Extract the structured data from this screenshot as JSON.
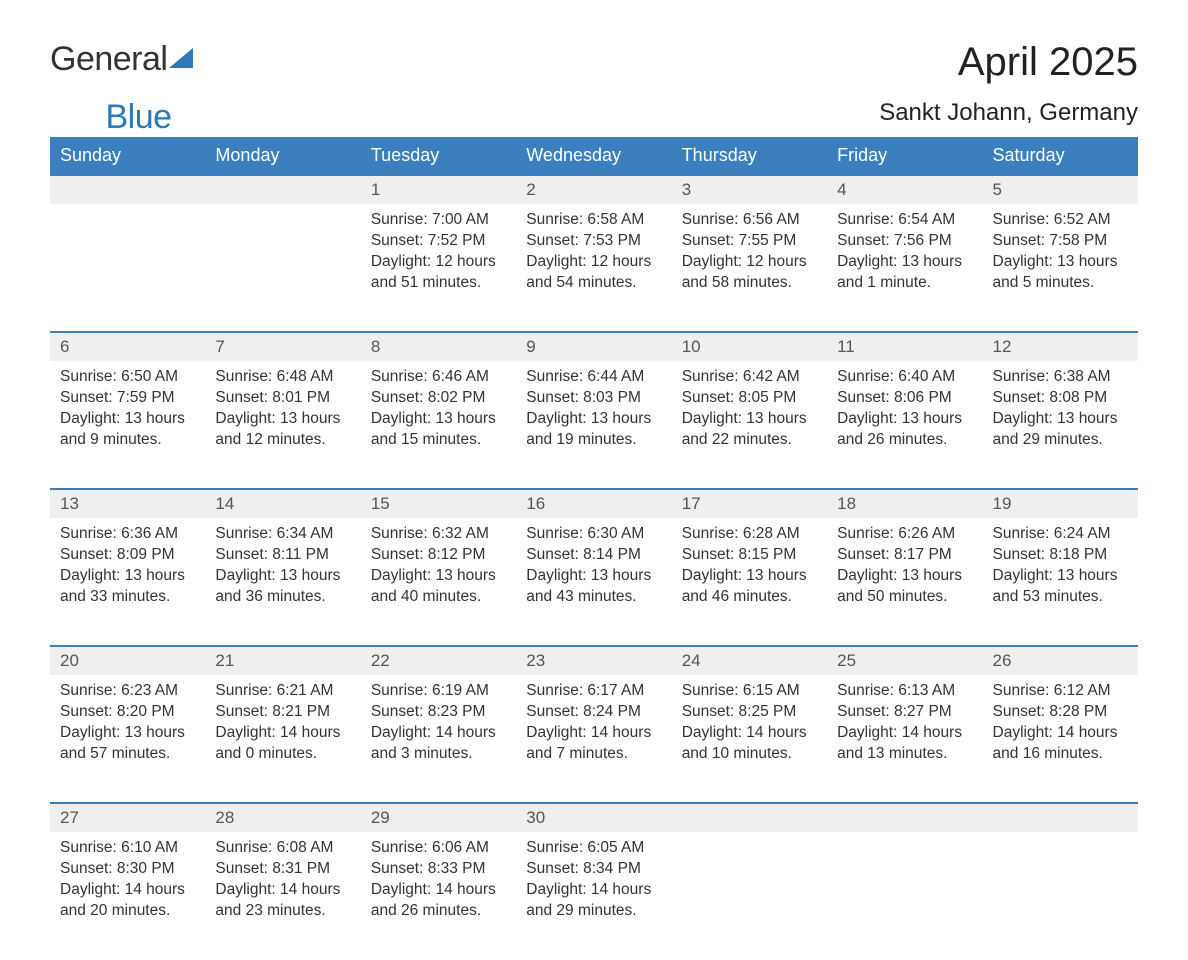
{
  "logo": {
    "text_general": "General",
    "text_blue": "Blue"
  },
  "title": "April 2025",
  "location": "Sankt Johann, Germany",
  "colors": {
    "header_bg": "#3b7fbf",
    "header_text": "#ffffff",
    "daynum_bg": "#efefef",
    "border_top": "#3b7fbf",
    "body_text": "#333333",
    "logo_blue": "#2e79ba",
    "background": "#ffffff"
  },
  "weekdays": [
    "Sunday",
    "Monday",
    "Tuesday",
    "Wednesday",
    "Thursday",
    "Friday",
    "Saturday"
  ],
  "weeks": [
    {
      "nums": [
        "",
        "",
        "1",
        "2",
        "3",
        "4",
        "5"
      ],
      "cells": [
        null,
        null,
        {
          "sunrise": "Sunrise: 7:00 AM",
          "sunset": "Sunset: 7:52 PM",
          "day1": "Daylight: 12 hours",
          "day2": "and 51 minutes."
        },
        {
          "sunrise": "Sunrise: 6:58 AM",
          "sunset": "Sunset: 7:53 PM",
          "day1": "Daylight: 12 hours",
          "day2": "and 54 minutes."
        },
        {
          "sunrise": "Sunrise: 6:56 AM",
          "sunset": "Sunset: 7:55 PM",
          "day1": "Daylight: 12 hours",
          "day2": "and 58 minutes."
        },
        {
          "sunrise": "Sunrise: 6:54 AM",
          "sunset": "Sunset: 7:56 PM",
          "day1": "Daylight: 13 hours",
          "day2": "and 1 minute."
        },
        {
          "sunrise": "Sunrise: 6:52 AM",
          "sunset": "Sunset: 7:58 PM",
          "day1": "Daylight: 13 hours",
          "day2": "and 5 minutes."
        }
      ]
    },
    {
      "nums": [
        "6",
        "7",
        "8",
        "9",
        "10",
        "11",
        "12"
      ],
      "cells": [
        {
          "sunrise": "Sunrise: 6:50 AM",
          "sunset": "Sunset: 7:59 PM",
          "day1": "Daylight: 13 hours",
          "day2": "and 9 minutes."
        },
        {
          "sunrise": "Sunrise: 6:48 AM",
          "sunset": "Sunset: 8:01 PM",
          "day1": "Daylight: 13 hours",
          "day2": "and 12 minutes."
        },
        {
          "sunrise": "Sunrise: 6:46 AM",
          "sunset": "Sunset: 8:02 PM",
          "day1": "Daylight: 13 hours",
          "day2": "and 15 minutes."
        },
        {
          "sunrise": "Sunrise: 6:44 AM",
          "sunset": "Sunset: 8:03 PM",
          "day1": "Daylight: 13 hours",
          "day2": "and 19 minutes."
        },
        {
          "sunrise": "Sunrise: 6:42 AM",
          "sunset": "Sunset: 8:05 PM",
          "day1": "Daylight: 13 hours",
          "day2": "and 22 minutes."
        },
        {
          "sunrise": "Sunrise: 6:40 AM",
          "sunset": "Sunset: 8:06 PM",
          "day1": "Daylight: 13 hours",
          "day2": "and 26 minutes."
        },
        {
          "sunrise": "Sunrise: 6:38 AM",
          "sunset": "Sunset: 8:08 PM",
          "day1": "Daylight: 13 hours",
          "day2": "and 29 minutes."
        }
      ]
    },
    {
      "nums": [
        "13",
        "14",
        "15",
        "16",
        "17",
        "18",
        "19"
      ],
      "cells": [
        {
          "sunrise": "Sunrise: 6:36 AM",
          "sunset": "Sunset: 8:09 PM",
          "day1": "Daylight: 13 hours",
          "day2": "and 33 minutes."
        },
        {
          "sunrise": "Sunrise: 6:34 AM",
          "sunset": "Sunset: 8:11 PM",
          "day1": "Daylight: 13 hours",
          "day2": "and 36 minutes."
        },
        {
          "sunrise": "Sunrise: 6:32 AM",
          "sunset": "Sunset: 8:12 PM",
          "day1": "Daylight: 13 hours",
          "day2": "and 40 minutes."
        },
        {
          "sunrise": "Sunrise: 6:30 AM",
          "sunset": "Sunset: 8:14 PM",
          "day1": "Daylight: 13 hours",
          "day2": "and 43 minutes."
        },
        {
          "sunrise": "Sunrise: 6:28 AM",
          "sunset": "Sunset: 8:15 PM",
          "day1": "Daylight: 13 hours",
          "day2": "and 46 minutes."
        },
        {
          "sunrise": "Sunrise: 6:26 AM",
          "sunset": "Sunset: 8:17 PM",
          "day1": "Daylight: 13 hours",
          "day2": "and 50 minutes."
        },
        {
          "sunrise": "Sunrise: 6:24 AM",
          "sunset": "Sunset: 8:18 PM",
          "day1": "Daylight: 13 hours",
          "day2": "and 53 minutes."
        }
      ]
    },
    {
      "nums": [
        "20",
        "21",
        "22",
        "23",
        "24",
        "25",
        "26"
      ],
      "cells": [
        {
          "sunrise": "Sunrise: 6:23 AM",
          "sunset": "Sunset: 8:20 PM",
          "day1": "Daylight: 13 hours",
          "day2": "and 57 minutes."
        },
        {
          "sunrise": "Sunrise: 6:21 AM",
          "sunset": "Sunset: 8:21 PM",
          "day1": "Daylight: 14 hours",
          "day2": "and 0 minutes."
        },
        {
          "sunrise": "Sunrise: 6:19 AM",
          "sunset": "Sunset: 8:23 PM",
          "day1": "Daylight: 14 hours",
          "day2": "and 3 minutes."
        },
        {
          "sunrise": "Sunrise: 6:17 AM",
          "sunset": "Sunset: 8:24 PM",
          "day1": "Daylight: 14 hours",
          "day2": "and 7 minutes."
        },
        {
          "sunrise": "Sunrise: 6:15 AM",
          "sunset": "Sunset: 8:25 PM",
          "day1": "Daylight: 14 hours",
          "day2": "and 10 minutes."
        },
        {
          "sunrise": "Sunrise: 6:13 AM",
          "sunset": "Sunset: 8:27 PM",
          "day1": "Daylight: 14 hours",
          "day2": "and 13 minutes."
        },
        {
          "sunrise": "Sunrise: 6:12 AM",
          "sunset": "Sunset: 8:28 PM",
          "day1": "Daylight: 14 hours",
          "day2": "and 16 minutes."
        }
      ]
    },
    {
      "nums": [
        "27",
        "28",
        "29",
        "30",
        "",
        "",
        ""
      ],
      "cells": [
        {
          "sunrise": "Sunrise: 6:10 AM",
          "sunset": "Sunset: 8:30 PM",
          "day1": "Daylight: 14 hours",
          "day2": "and 20 minutes."
        },
        {
          "sunrise": "Sunrise: 6:08 AM",
          "sunset": "Sunset: 8:31 PM",
          "day1": "Daylight: 14 hours",
          "day2": "and 23 minutes."
        },
        {
          "sunrise": "Sunrise: 6:06 AM",
          "sunset": "Sunset: 8:33 PM",
          "day1": "Daylight: 14 hours",
          "day2": "and 26 minutes."
        },
        {
          "sunrise": "Sunrise: 6:05 AM",
          "sunset": "Sunset: 8:34 PM",
          "day1": "Daylight: 14 hours",
          "day2": "and 29 minutes."
        },
        null,
        null,
        null
      ]
    }
  ]
}
